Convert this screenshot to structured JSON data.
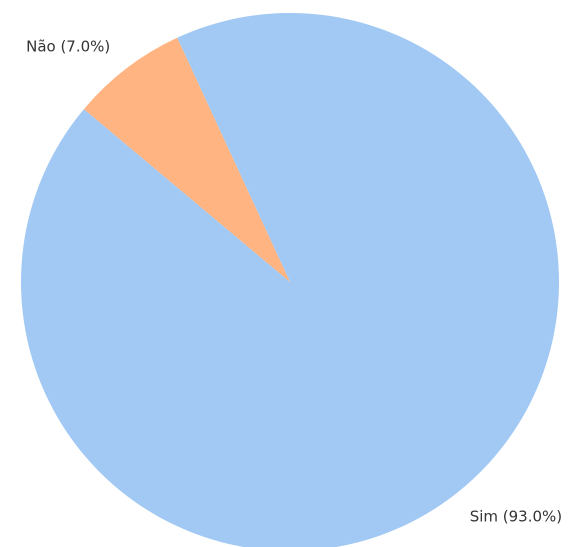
{
  "chart_data": {
    "type": "pie",
    "values": [
      93,
      7
    ],
    "value_labels": [
      "Sim (93.0%)",
      "Não (7.0%)"
    ],
    "colors": [
      "#a1c9f4",
      "#ffb482"
    ]
  }
}
